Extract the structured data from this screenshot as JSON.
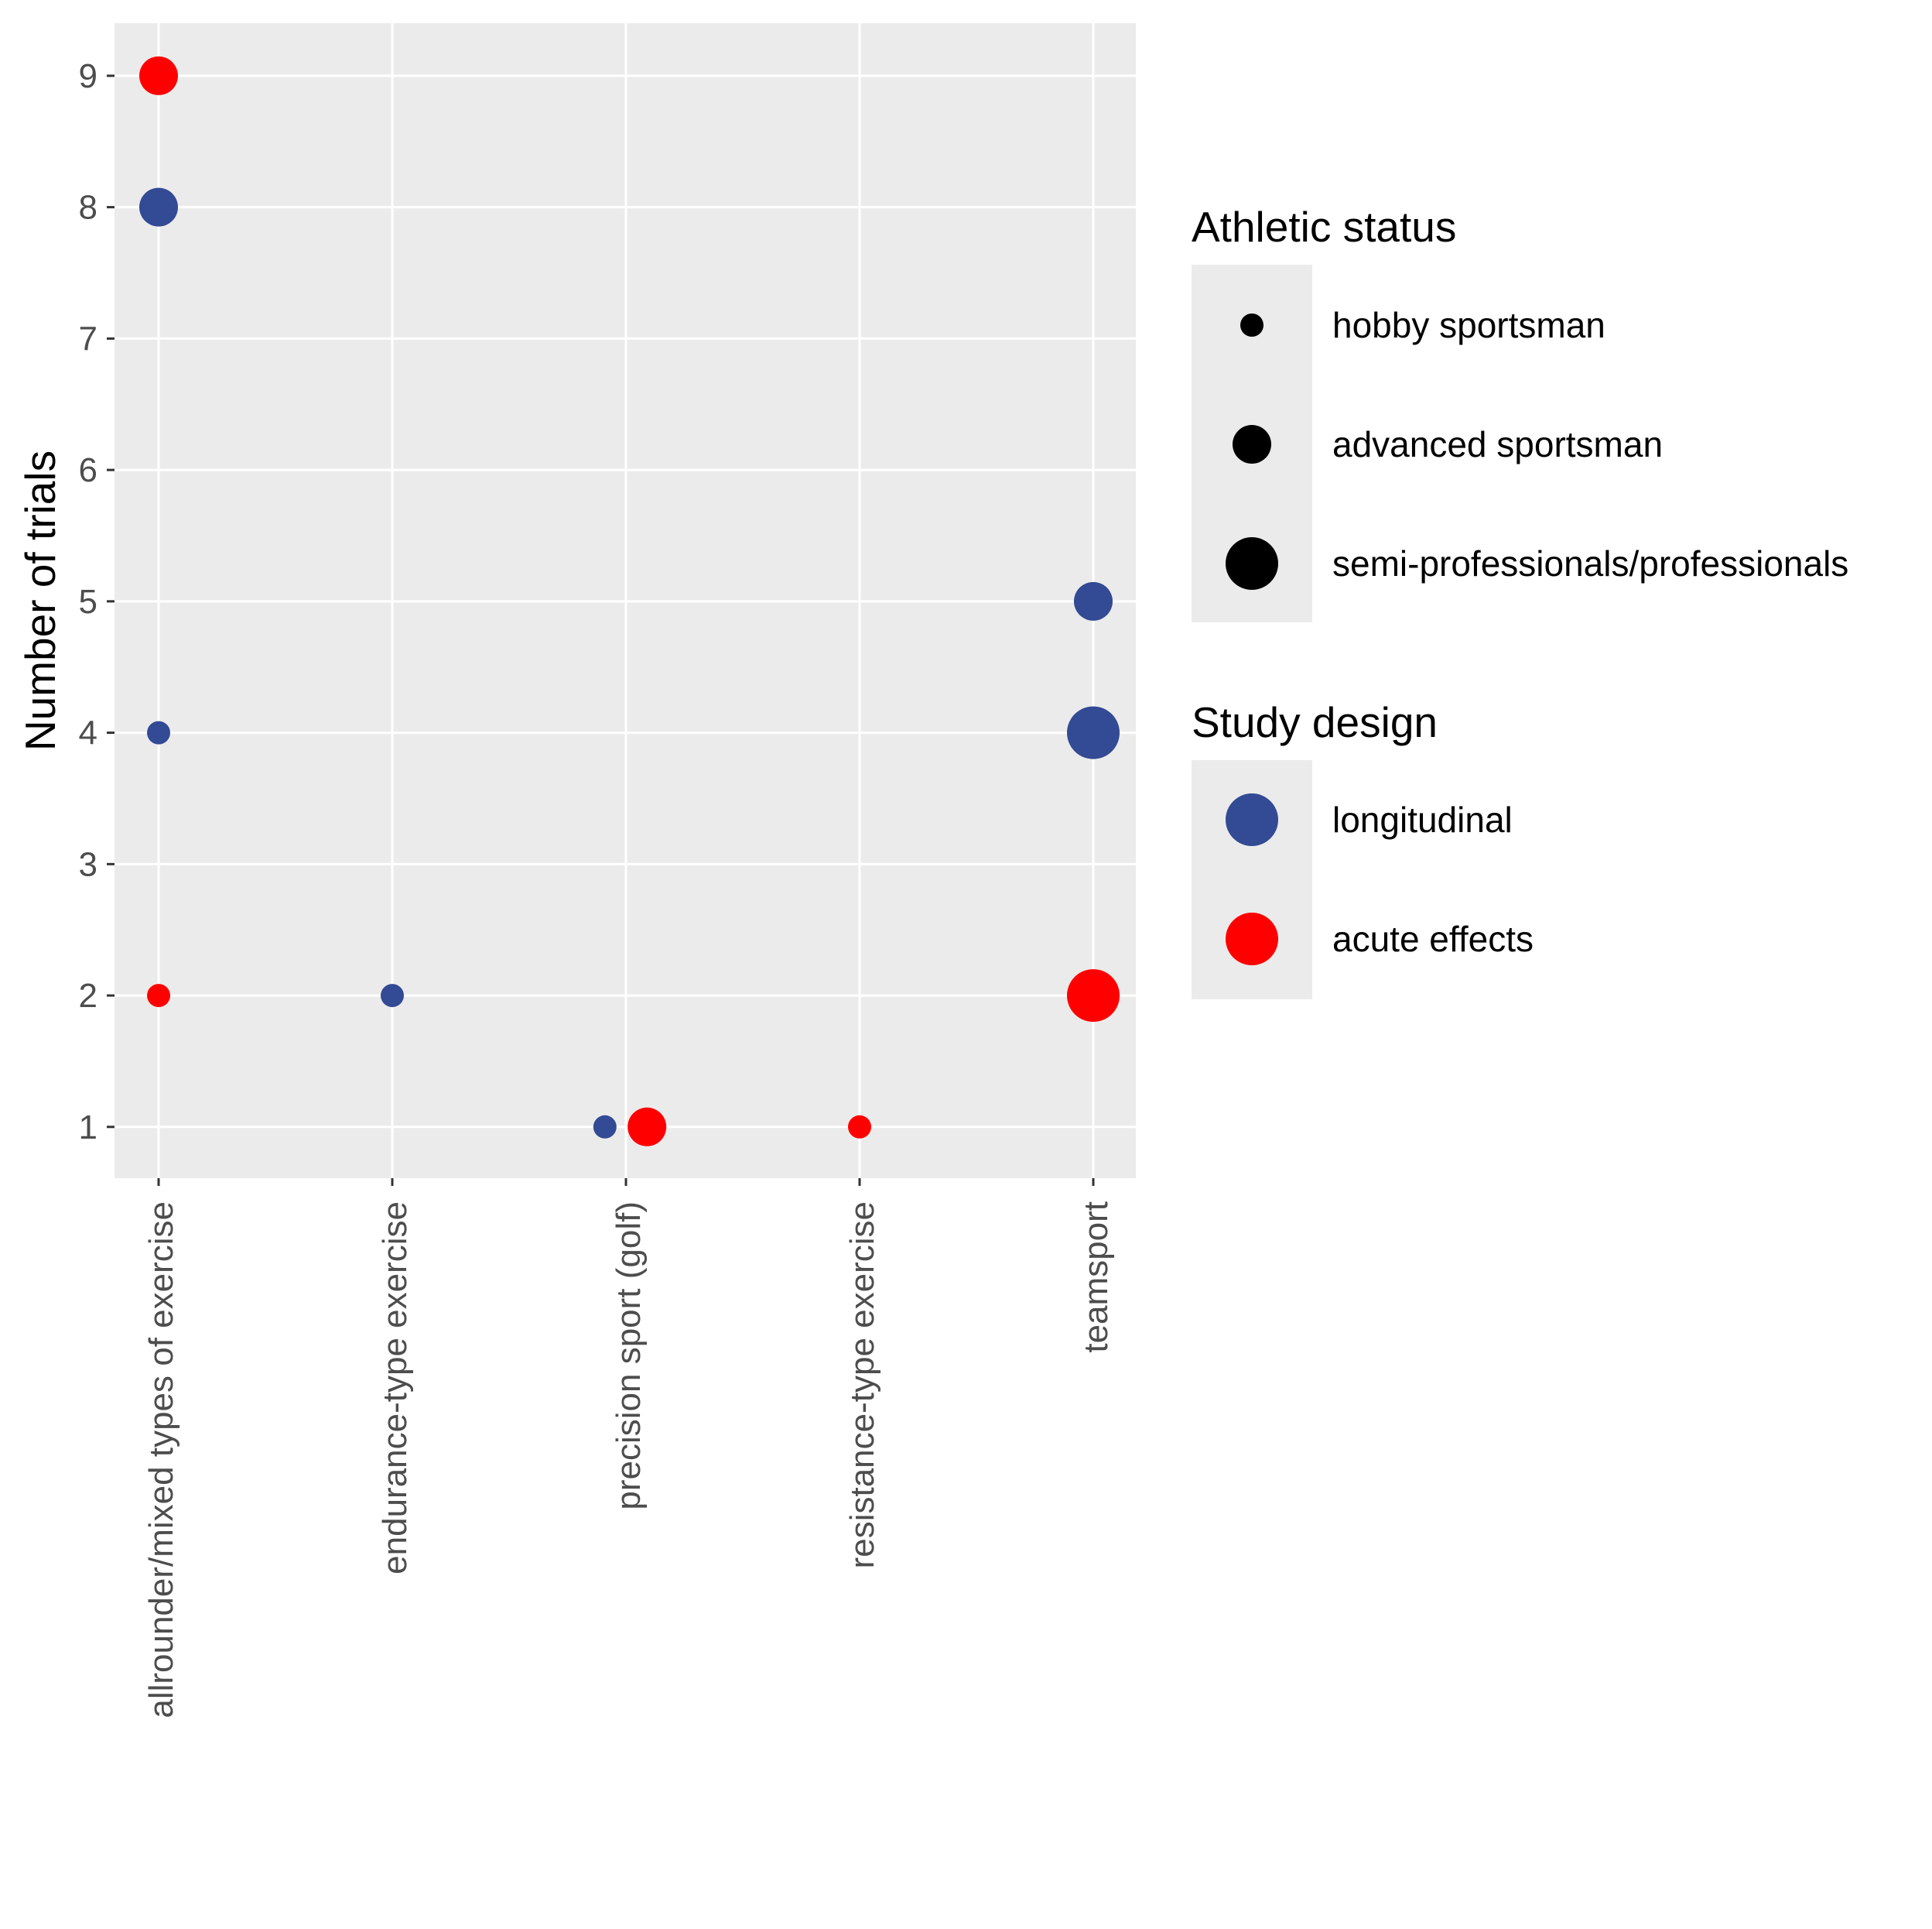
{
  "chart_data": {
    "type": "scatter",
    "title": "",
    "xlabel": "",
    "ylabel": "Number of trials",
    "categories": [
      "allrounder/mixed types of exercise",
      "endurance-type exercise",
      "precision sport (golf)",
      "resistance-type exercise",
      "teamsport"
    ],
    "yticks": [
      "1",
      "2",
      "3",
      "4",
      "5",
      "6",
      "7",
      "8",
      "9"
    ],
    "ylim": [
      0.61,
      9.4
    ],
    "grid": true,
    "points": [
      {
        "category": "allrounder/mixed types of exercise",
        "y": 9,
        "design": "acute effects",
        "status": "advanced sportsman"
      },
      {
        "category": "allrounder/mixed types of exercise",
        "y": 8,
        "design": "longitudinal",
        "status": "advanced sportsman"
      },
      {
        "category": "allrounder/mixed types of exercise",
        "y": 4,
        "design": "longitudinal",
        "status": "hobby sportsman"
      },
      {
        "category": "allrounder/mixed types of exercise",
        "y": 2,
        "design": "acute effects",
        "status": "hobby sportsman"
      },
      {
        "category": "endurance-type exercise",
        "y": 2,
        "design": "longitudinal",
        "status": "hobby sportsman"
      },
      {
        "category": "precision sport (golf)",
        "y": 1,
        "design": "longitudinal",
        "status": "hobby sportsman",
        "dodge": -0.09
      },
      {
        "category": "precision sport (golf)",
        "y": 1,
        "design": "acute effects",
        "status": "advanced sportsman",
        "dodge": 0.09
      },
      {
        "category": "resistance-type exercise",
        "y": 1,
        "design": "acute effects",
        "status": "hobby sportsman"
      },
      {
        "category": "teamsport",
        "y": 5,
        "design": "longitudinal",
        "status": "advanced sportsman"
      },
      {
        "category": "teamsport",
        "y": 4,
        "design": "longitudinal",
        "status": "semi-professionals/professionals"
      },
      {
        "category": "teamsport",
        "y": 2,
        "design": "acute effects",
        "status": "semi-professionals/professionals"
      }
    ],
    "legend": {
      "position": "right",
      "size_title": "Athletic status",
      "size_entries": [
        "hobby sportsman",
        "advanced sportsman",
        "semi-professionals/professionals"
      ],
      "color_title": "Study design",
      "color_entries": [
        "longitudinal",
        "acute effects"
      ]
    },
    "colors": {
      "longitudinal": "#334a94",
      "acute effects": "#ff0000",
      "panel": "#ebebeb",
      "grid": "#ffffff",
      "tick": "#333333",
      "legend_key": "#000000"
    }
  }
}
